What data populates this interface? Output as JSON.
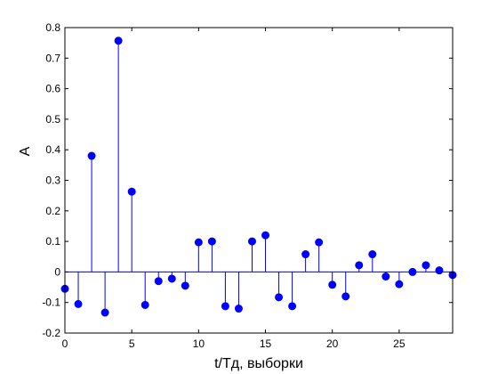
{
  "chart_data": {
    "type": "stem",
    "xlabel": "t/Тд, выборки",
    "ylabel": "A",
    "xlim": [
      0,
      29
    ],
    "ylim": [
      -0.2,
      0.8
    ],
    "grid": false,
    "xticks": [
      0,
      5,
      10,
      15,
      20,
      25
    ],
    "yticks": [
      -0.2,
      -0.1,
      0,
      0.1,
      0.2,
      0.3,
      0.4,
      0.5,
      0.6,
      0.7,
      0.8
    ],
    "xtick_labels": [
      "0",
      "5",
      "10",
      "15",
      "20",
      "25"
    ],
    "ytick_labels": [
      "-0.2",
      "-0.1",
      "0",
      "0.1",
      "0.2",
      "0.3",
      "0.4",
      "0.5",
      "0.6",
      "0.7",
      "0.8"
    ],
    "series": [
      {
        "color": "#0000ff",
        "x": [
          0,
          1,
          2,
          3,
          4,
          5,
          6,
          7,
          8,
          9,
          10,
          11,
          12,
          13,
          14,
          15,
          16,
          17,
          18,
          19,
          20,
          21,
          22,
          23,
          24,
          25,
          26,
          27,
          28,
          29
        ],
        "values": [
          -0.055,
          -0.105,
          0.38,
          -0.133,
          0.757,
          0.263,
          -0.108,
          -0.03,
          -0.022,
          -0.045,
          0.097,
          0.1,
          -0.112,
          -0.12,
          0.1,
          0.12,
          -0.083,
          -0.112,
          0.058,
          0.097,
          -0.042,
          -0.08,
          0.022,
          0.058,
          -0.015,
          -0.04,
          0.0,
          0.022,
          0.005,
          -0.01
        ]
      }
    ]
  }
}
